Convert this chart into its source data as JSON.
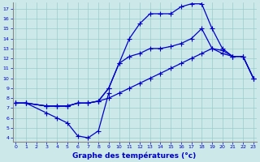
{
  "xlabel": "Graphe des températures (°c)",
  "bg_color": "#cce8e8",
  "line_color": "#0000cc",
  "grid_color": "#99cccc",
  "xticks": [
    0,
    1,
    2,
    3,
    4,
    5,
    6,
    7,
    8,
    9,
    10,
    11,
    12,
    13,
    14,
    15,
    16,
    17,
    18,
    19,
    20,
    21,
    22,
    23
  ],
  "yticks": [
    4,
    5,
    6,
    7,
    8,
    9,
    10,
    11,
    12,
    13,
    14,
    15,
    16,
    17
  ],
  "xlim": [
    -0.3,
    23.3
  ],
  "ylim": [
    3.6,
    17.6
  ],
  "line1_x": [
    0,
    1,
    3,
    4,
    5,
    6,
    7,
    8,
    9
  ],
  "line1_y": [
    7.5,
    7.5,
    6.5,
    6.0,
    5.5,
    4.2,
    4.0,
    4.7,
    8.5
  ],
  "line2_x": [
    0,
    1,
    3,
    4,
    5,
    6,
    7,
    8,
    9,
    10,
    11,
    12,
    13,
    14,
    15,
    16,
    17,
    18,
    19,
    20,
    21,
    22,
    23
  ],
  "line2_y": [
    7.5,
    7.5,
    7.2,
    7.2,
    7.2,
    7.5,
    7.5,
    7.7,
    8.0,
    8.5,
    9.0,
    9.5,
    10.0,
    10.5,
    11.0,
    11.5,
    12.0,
    12.5,
    13.0,
    12.8,
    12.2,
    12.2,
    10.0
  ],
  "line3_x": [
    0,
    1,
    3,
    4,
    5,
    6,
    7,
    8,
    9,
    10,
    11,
    12,
    13,
    14,
    15,
    16,
    17,
    18,
    19,
    20,
    21,
    22,
    23
  ],
  "line3_y": [
    7.5,
    7.5,
    7.2,
    7.2,
    7.2,
    7.5,
    7.5,
    7.7,
    9.0,
    11.5,
    12.2,
    12.5,
    13.0,
    13.0,
    13.2,
    13.5,
    14.0,
    15.0,
    13.0,
    12.5,
    12.2,
    12.2,
    10.0
  ],
  "line4_x": [
    0,
    1,
    3,
    4,
    5,
    6,
    7,
    8,
    9,
    10,
    11,
    12,
    13,
    14,
    15,
    16,
    17,
    18,
    19,
    20,
    21,
    22,
    23
  ],
  "line4_y": [
    7.5,
    7.5,
    7.2,
    7.2,
    7.2,
    7.5,
    7.5,
    7.7,
    9.0,
    11.5,
    14.0,
    15.5,
    16.5,
    16.5,
    16.5,
    17.2,
    17.5,
    17.5,
    15.0,
    13.0,
    12.2,
    12.2,
    10.0
  ]
}
